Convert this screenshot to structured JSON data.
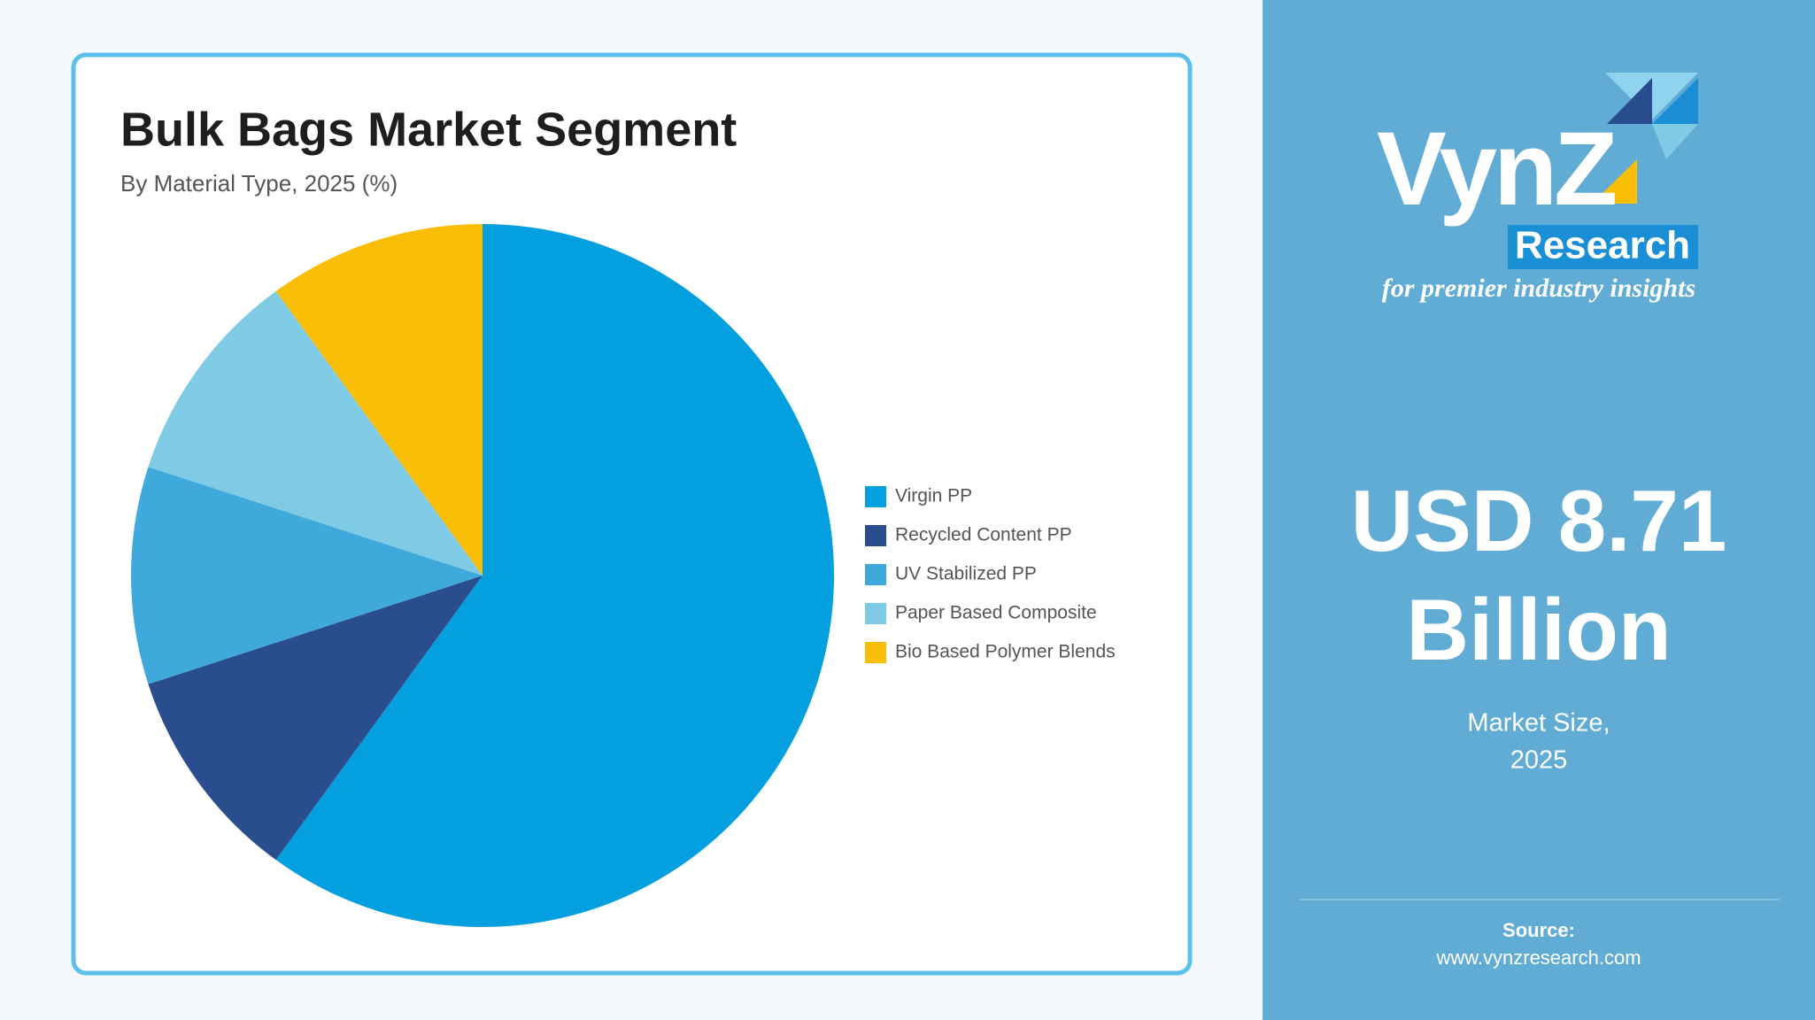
{
  "chart_data": {
    "type": "pie",
    "title": "Bulk Bags Market Segment",
    "subtitle": "By Material Type, 2025 (%)",
    "categories": [
      "Virgin PP",
      "Recycled Content PP",
      "UV Stabilized PP",
      "Paper Based Composite",
      "Bio Based Polymer Blends"
    ],
    "values": [
      60,
      10,
      10,
      10,
      10
    ],
    "colors": [
      "#039fdf",
      "#2a4d8d",
      "#40a9dc",
      "#7fcae4",
      "#fabe07"
    ],
    "legend": "right"
  },
  "sidebar": {
    "logo": {
      "name": "VynZ",
      "sub": "Research",
      "tagline": "for premier industry insights"
    },
    "market_value": "USD 8.71",
    "market_unit": "Billion",
    "market_label": "Market Size,",
    "market_year": "2025",
    "source_label": "Source:",
    "source_url": "www.vynzresearch.com"
  }
}
